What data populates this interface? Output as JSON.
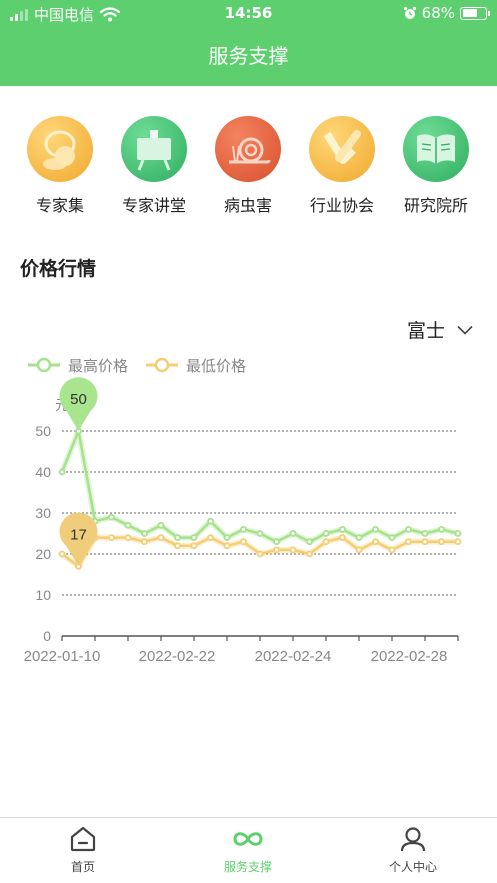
{
  "status_bar": {
    "carrier": "中国电信",
    "time": "14:56",
    "battery": "68%",
    "battery_level": 0.68
  },
  "header": {
    "title": "服务支撑"
  },
  "services": [
    {
      "label": "专家集",
      "icon": "expert-collection-icon",
      "color": "#f2b33d"
    },
    {
      "label": "专家讲堂",
      "icon": "lecture-hall-icon",
      "color": "#3fbf73"
    },
    {
      "label": "病虫害",
      "icon": "snail-pest-icon",
      "color": "#e8623e"
    },
    {
      "label": "行业协会",
      "icon": "handshake-icon",
      "color": "#f2b33d"
    },
    {
      "label": "研究院所",
      "icon": "book-icon",
      "color": "#3fbf73"
    }
  ],
  "section": {
    "title": "价格行情"
  },
  "variety_select": {
    "value": "富士",
    "icon": "chevron-down-icon"
  },
  "chart_data": {
    "type": "line",
    "y_unit": "元",
    "ylim": [
      0,
      50
    ],
    "yticks": [
      0,
      10,
      20,
      30,
      40,
      50
    ],
    "x_tick_labels": [
      "2022-01-10",
      "2022-02-22",
      "2022-02-24",
      "2022-02-28"
    ],
    "series": [
      {
        "name": "最高价格",
        "color": "#a6e28c",
        "values": [
          40,
          50,
          28,
          29,
          27,
          25,
          27,
          24,
          24,
          28,
          24,
          26,
          25,
          23,
          25,
          23,
          25,
          26,
          24,
          26,
          24,
          26,
          25,
          26,
          25
        ]
      },
      {
        "name": "最低价格",
        "color": "#f5cd72",
        "values": [
          20,
          17,
          24,
          24,
          24,
          23,
          24,
          22,
          22,
          24,
          22,
          23,
          20,
          21,
          21,
          20,
          23,
          24,
          21,
          23,
          21,
          23,
          23,
          23,
          23
        ]
      }
    ],
    "callouts": [
      {
        "series": "最高价格",
        "value": 50
      },
      {
        "series": "最低价格",
        "value": 17
      }
    ],
    "grid": "dotted horizontal",
    "legend_position": "top-left"
  },
  "tabbar": {
    "tabs": [
      {
        "label": "首页",
        "icon": "home-icon"
      },
      {
        "label": "服务支撑",
        "icon": "infinity-service-icon",
        "active": true
      },
      {
        "label": "个人中心",
        "icon": "user-profile-icon"
      }
    ]
  }
}
